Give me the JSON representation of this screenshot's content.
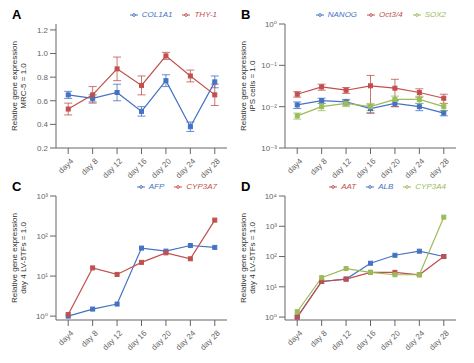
{
  "chart_data": [
    {
      "type": "line",
      "title": "A",
      "ylabel": "Relative gene expression\nMRC-5 = 1.0",
      "x": [
        4,
        8,
        12,
        16,
        20,
        24,
        28
      ],
      "xlim": [
        2,
        30
      ],
      "xticks": [
        {
          "value": 4,
          "label": "day4"
        },
        {
          "value": 8,
          "label": "day 8"
        },
        {
          "value": 12,
          "label": "day 12"
        },
        {
          "value": 16,
          "label": "day 16"
        },
        {
          "value": 20,
          "label": "day 20"
        },
        {
          "value": 24,
          "label": "day 24"
        },
        {
          "value": 28,
          "label": "day 28"
        }
      ],
      "ylim": [
        0.2,
        1.25
      ],
      "yticks": [
        0.2,
        0.4,
        0.6,
        0.8,
        {
          "value": 1.0,
          "label": "1.0"
        },
        1.2
      ],
      "grid": false,
      "legend": "top",
      "series": [
        {
          "name": "COL1A1",
          "color": "#4472C4",
          "marker": "square",
          "values": [
            0.65,
            0.62,
            0.67,
            0.51,
            0.77,
            0.38,
            0.76
          ],
          "yerr": [
            0.03,
            0.03,
            0.07,
            0.04,
            0.05,
            0.04,
            0.05
          ]
        },
        {
          "name": "THY-1",
          "color": "#C0504D",
          "marker": "square",
          "values": [
            0.53,
            0.65,
            0.87,
            0.73,
            0.98,
            0.81,
            0.65
          ],
          "yerr": [
            0.05,
            0.07,
            0.1,
            0.08,
            0.03,
            0.05,
            0.09
          ]
        }
      ]
    },
    {
      "type": "line",
      "title": "B",
      "ylabel": "Relative gene expression\niPS cells = 1.0",
      "x": [
        4,
        8,
        12,
        16,
        20,
        24,
        28
      ],
      "xlim": [
        2,
        30
      ],
      "xticks": [
        {
          "value": 4,
          "label": "day4"
        },
        {
          "value": 8,
          "label": "day 8"
        },
        {
          "value": 12,
          "label": "day 12"
        },
        {
          "value": 16,
          "label": "day 16"
        },
        {
          "value": 20,
          "label": "day 20"
        },
        {
          "value": 24,
          "label": "day 24"
        },
        {
          "value": 28,
          "label": "day 28"
        }
      ],
      "log": "y",
      "ylim": [
        0.001,
        1
      ],
      "yticks": [
        {
          "value": 0.001,
          "label": "10⁻³"
        },
        {
          "value": 0.01,
          "label": "10⁻²"
        },
        {
          "value": 0.1,
          "label": "10⁻¹"
        },
        {
          "value": 1,
          "label": "10⁰"
        }
      ],
      "grid": false,
      "legend": "top",
      "series": [
        {
          "name": "NANOG",
          "color": "#4472C4",
          "marker": "square",
          "values": [
            0.011,
            0.014,
            0.013,
            0.009,
            0.012,
            0.01,
            0.007
          ],
          "yerr": [
            0.002,
            0.002,
            0.002,
            0.002,
            0.002,
            0.002,
            0.001
          ]
        },
        {
          "name": "Oct3/4",
          "color": "#C0504D",
          "marker": "square",
          "values": [
            0.02,
            0.03,
            0.025,
            0.032,
            0.028,
            0.022,
            0.016
          ],
          "yerr": [
            0.003,
            0.005,
            0.004,
            0.025,
            0.018,
            0.005,
            0.004
          ]
        },
        {
          "name": "SOX2",
          "color": "#9BBB59",
          "marker": "square",
          "values": [
            0.006,
            0.01,
            0.012,
            0.01,
            0.015,
            0.015,
            0.01
          ],
          "yerr": [
            0.001,
            0.002,
            0.002,
            0.002,
            0.003,
            0.003,
            0.002
          ]
        }
      ]
    },
    {
      "type": "line",
      "title": "C",
      "ylabel": "Relative gene expression\nday 4 LV-5TFs = 1.0",
      "x": [
        4,
        8,
        12,
        16,
        20,
        24,
        28
      ],
      "xlim": [
        2,
        30
      ],
      "xticks": [
        {
          "value": 4,
          "label": "day4"
        },
        {
          "value": 8,
          "label": "day 8"
        },
        {
          "value": 12,
          "label": "day 12"
        },
        {
          "value": 16,
          "label": "day 16"
        },
        {
          "value": 20,
          "label": "day 20"
        },
        {
          "value": 24,
          "label": "day 24"
        },
        {
          "value": 28,
          "label": "day 28"
        }
      ],
      "log": "y",
      "ylim": [
        0.8,
        1000
      ],
      "yticks": [
        {
          "value": 1,
          "label": "10⁰"
        },
        {
          "value": 10,
          "label": "10¹"
        },
        {
          "value": 100,
          "label": "10²"
        },
        {
          "value": 1000,
          "label": "10³"
        }
      ],
      "grid": false,
      "legend": "top",
      "series": [
        {
          "name": "AFP",
          "color": "#4472C4",
          "marker": "square",
          "values": [
            1.0,
            1.5,
            2.0,
            50.0,
            42.0,
            58.0,
            52.0
          ]
        },
        {
          "name": "CYP3A7",
          "color": "#C0504D",
          "marker": "square",
          "values": [
            1.1,
            16.0,
            11.0,
            22.0,
            38.0,
            27.0,
            250.0
          ]
        }
      ]
    },
    {
      "type": "line",
      "title": "D",
      "ylabel": "Relative gene expression\nday 4 LV-5TFs = 1.0",
      "x": [
        4,
        8,
        12,
        16,
        20,
        24,
        28
      ],
      "xlim": [
        2,
        30
      ],
      "xticks": [
        {
          "value": 4,
          "label": "day4"
        },
        {
          "value": 8,
          "label": "day 8"
        },
        {
          "value": 12,
          "label": "day 12"
        },
        {
          "value": 16,
          "label": "day 16"
        },
        {
          "value": 20,
          "label": "day 20"
        },
        {
          "value": 24,
          "label": "day 24"
        },
        {
          "value": 28,
          "label": "day 28"
        }
      ],
      "log": "y",
      "ylim": [
        0.8,
        10000
      ],
      "yticks": [
        {
          "value": 1,
          "label": "10⁰"
        },
        {
          "value": 10,
          "label": "10¹"
        },
        {
          "value": 100,
          "label": "10²"
        },
        {
          "value": 1000,
          "label": "10³"
        },
        {
          "value": 10000,
          "label": "10⁴"
        }
      ],
      "grid": false,
      "legend": "top",
      "series": [
        {
          "name": "ALB",
          "color": "#4472C4",
          "marker": "square",
          "values": [
            1.0,
            15.0,
            18.0,
            60.0,
            110.0,
            150.0,
            100.0
          ]
        },
        {
          "name": "AAT",
          "color": "#C0504D",
          "marker": "square",
          "values": [
            1.0,
            15.0,
            18.0,
            30.0,
            30.0,
            25.0,
            100.0
          ]
        },
        {
          "name": "CYP3A4",
          "color": "#9BBB59",
          "marker": "square",
          "values": [
            1.5,
            20.0,
            40.0,
            30.0,
            25.0,
            25.0,
            2000.0
          ]
        }
      ]
    }
  ]
}
